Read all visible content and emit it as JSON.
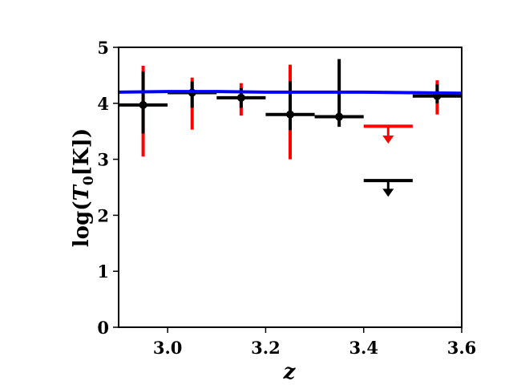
{
  "chart_data": {
    "type": "scatter",
    "title": "",
    "xlabel": "z",
    "ylabel_main": "log(",
    "ylabel_var": "T",
    "ylabel_sub": "0",
    "ylabel_unit": "[K])",
    "xlim": [
      2.9,
      3.6
    ],
    "ylim": [
      0,
      5
    ],
    "xticks": [
      3.0,
      3.2,
      3.4,
      3.6
    ],
    "xtick_labels": [
      "3.0",
      "3.2",
      "3.4",
      "3.6"
    ],
    "yticks": [
      0,
      1,
      2,
      3,
      4,
      5
    ],
    "ytick_labels": [
      "0",
      "1",
      "2",
      "3",
      "4",
      "5"
    ],
    "grid": false,
    "legend": "none",
    "colors": {
      "black": "#000000",
      "red": "#ff0000",
      "blue": "#0000ff"
    },
    "red_errorbars": [
      {
        "x": 2.95,
        "low": 3.05,
        "high": 4.67
      },
      {
        "x": 3.05,
        "low": 3.53,
        "high": 4.46
      },
      {
        "x": 3.15,
        "low": 3.78,
        "high": 4.36
      },
      {
        "x": 3.25,
        "low": 3.0,
        "high": 4.69
      },
      {
        "x": 3.55,
        "low": 3.8,
        "high": 4.41
      }
    ],
    "black_points": [
      {
        "x": 2.95,
        "y": 3.97,
        "xlow": 2.9,
        "xhigh": 3.0,
        "low": 3.46,
        "high": 4.57
      },
      {
        "x": 3.05,
        "y": 4.19,
        "xlow": 3.0,
        "xhigh": 3.1,
        "low": 3.92,
        "high": 4.39
      },
      {
        "x": 3.15,
        "y": 4.1,
        "xlow": 3.1,
        "xhigh": 3.2,
        "low": 3.92,
        "high": 4.27
      },
      {
        "x": 3.25,
        "y": 3.8,
        "xlow": 3.2,
        "xhigh": 3.3,
        "low": 3.52,
        "high": 4.4
      },
      {
        "x": 3.35,
        "y": 3.76,
        "xlow": 3.3,
        "xhigh": 3.4,
        "low": 3.58,
        "high": 4.79
      },
      {
        "x": 3.55,
        "y": 4.13,
        "xlow": 3.5,
        "xhigh": 3.6,
        "low": 4.0,
        "high": 4.34
      }
    ],
    "upper_limits": [
      {
        "x": 3.45,
        "y": 3.59,
        "xlow": 3.4,
        "xhigh": 3.5,
        "color": "red",
        "arrow_to": 3.28
      },
      {
        "x": 3.45,
        "y": 2.62,
        "xlow": 3.4,
        "xhigh": 3.5,
        "color": "black",
        "arrow_to": 2.33
      }
    ],
    "model_line": {
      "color": "blue",
      "x": [
        2.9,
        3.0,
        3.1,
        3.2,
        3.3,
        3.4,
        3.5,
        3.6
      ],
      "y": [
        4.2,
        4.21,
        4.21,
        4.2,
        4.2,
        4.2,
        4.19,
        4.18
      ]
    }
  }
}
